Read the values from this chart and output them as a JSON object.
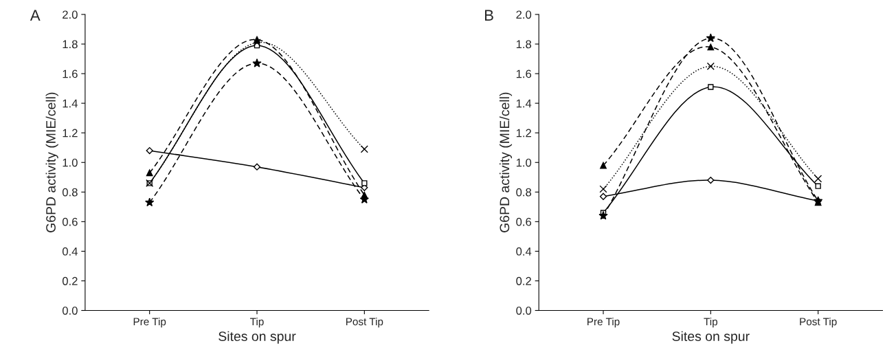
{
  "chart_data": [
    {
      "type": "line",
      "title": "A",
      "xlabel": "Sites on spur",
      "ylabel": "G6PD activity (MIE/cell)",
      "categories": [
        "Pre Tip",
        "Tip",
        "Post Tip"
      ],
      "ylim": [
        0,
        2.0
      ],
      "yticks": [
        {
          "value": 0,
          "label": "0.0"
        },
        {
          "value": 0.2,
          "label": "0.2"
        },
        {
          "value": 0.4,
          "label": "0.4"
        },
        {
          "value": 0.6,
          "label": "0.6"
        },
        {
          "value": 0.8,
          "label": "0.8"
        },
        {
          "value": 1.0,
          "label": "1.0"
        },
        {
          "value": 1.2,
          "label": "1.2"
        },
        {
          "value": 1.4,
          "label": "1.4"
        },
        {
          "value": 1.6,
          "label": "1.6"
        },
        {
          "value": 1.8,
          "label": "1.8"
        },
        {
          "value": 2.0,
          "label": "2.0"
        }
      ],
      "grid": false,
      "legend": false,
      "series": [
        {
          "color": "#000000",
          "marker": "diamond",
          "line_style": "solid",
          "values": [
            1.08,
            0.97,
            0.83
          ]
        },
        {
          "color": "#000000",
          "marker": "triangle",
          "line_style": "dashed",
          "values": [
            0.93,
            1.83,
            0.78
          ]
        },
        {
          "color": "#000000",
          "marker": "square",
          "line_style": "solid",
          "values": [
            0.86,
            1.79,
            0.86
          ]
        },
        {
          "color": "#000000",
          "marker": "cross",
          "line_style": "dotted",
          "values": [
            0.86,
            1.81,
            1.09
          ]
        },
        {
          "color": "#000000",
          "marker": "star",
          "line_style": "dashed",
          "values": [
            0.73,
            1.67,
            0.75
          ]
        }
      ]
    },
    {
      "type": "line",
      "title": "B",
      "xlabel": "Sites on spur",
      "ylabel": "G6PD activity (MIE/cell)",
      "categories": [
        "Pre Tip",
        "Tip",
        "Post Tip"
      ],
      "ylim": [
        0,
        2.0
      ],
      "yticks": [
        {
          "value": 0,
          "label": "0.0"
        },
        {
          "value": 0.2,
          "label": "0.2"
        },
        {
          "value": 0.4,
          "label": "0.4"
        },
        {
          "value": 0.6,
          "label": "0.6"
        },
        {
          "value": 0.8,
          "label": "0.8"
        },
        {
          "value": 1.0,
          "label": "1.0"
        },
        {
          "value": 1.2,
          "label": "1.2"
        },
        {
          "value": 1.4,
          "label": "1.4"
        },
        {
          "value": 1.6,
          "label": "1.6"
        },
        {
          "value": 1.8,
          "label": "1.8"
        },
        {
          "value": 2.0,
          "label": "2.0"
        }
      ],
      "grid": false,
      "legend": false,
      "series": [
        {
          "color": "#000000",
          "marker": "diamond",
          "line_style": "solid",
          "values": [
            0.77,
            0.88,
            0.74
          ]
        },
        {
          "color": "#000000",
          "marker": "triangle",
          "line_style": "dashed",
          "values": [
            0.98,
            1.78,
            0.73
          ]
        },
        {
          "color": "#000000",
          "marker": "square",
          "line_style": "solid",
          "values": [
            0.66,
            1.51,
            0.84
          ]
        },
        {
          "color": "#000000",
          "marker": "cross",
          "line_style": "dotted",
          "values": [
            0.82,
            1.65,
            0.89
          ]
        },
        {
          "color": "#000000",
          "marker": "star",
          "line_style": "dashed",
          "values": [
            0.64,
            1.84,
            0.74
          ]
        }
      ]
    }
  ]
}
